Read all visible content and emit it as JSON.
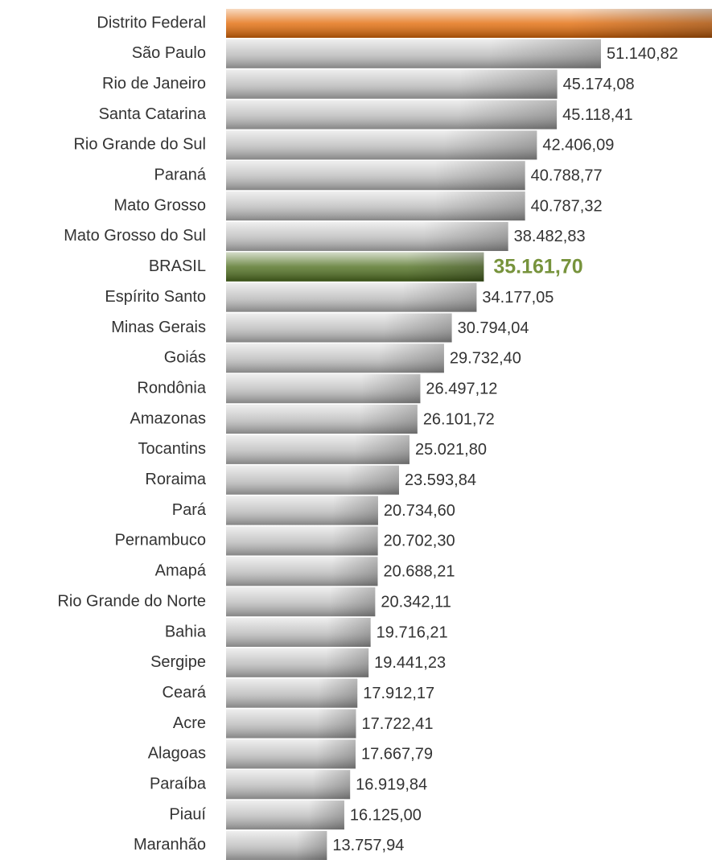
{
  "chart_data": {
    "type": "bar",
    "orientation": "horizontal",
    "categories": [
      "Distrito Federal",
      "São Paulo",
      "Rio de Janeiro",
      "Santa Catarina",
      "Rio Grande do Sul",
      "Paraná",
      "Mato Grosso",
      "Mato Grosso do Sul",
      "BRASIL",
      "Espírito Santo",
      "Minas Gerais",
      "Goiás",
      "Rondônia",
      "Amazonas",
      "Tocantins",
      "Roraima",
      "Pará",
      "Pernambuco",
      "Amapá",
      "Rio Grande do Norte",
      "Bahia",
      "Sergipe",
      "Ceará",
      "Acre",
      "Alagoas",
      "Paraíba",
      "Piauí",
      "Maranhão"
    ],
    "values": [
      67000,
      51140.82,
      45174.08,
      45118.41,
      42406.09,
      40788.77,
      40787.32,
      38482.83,
      35161.7,
      34177.05,
      30794.04,
      29732.4,
      26497.12,
      26101.72,
      25021.8,
      23593.84,
      20734.6,
      20702.3,
      20688.21,
      20342.11,
      19716.21,
      19441.23,
      17912.17,
      17722.41,
      17667.79,
      16919.84,
      16125.0,
      13757.94
    ],
    "value_labels": [
      null,
      "51.140,82",
      "45.174,08",
      "45.118,41",
      "42.406,09",
      "40.788,77",
      "40.787,32",
      "38.482,83",
      "35.161,70",
      "34.177,05",
      "30.794,04",
      "29.732,40",
      "26.497,12",
      "26.101,72",
      "25.021,80",
      "23.593,84",
      "20.734,60",
      "20.702,30",
      "20.688,21",
      "20.342,11",
      "19.716,21",
      "19.441,23",
      "17.912,17",
      "17.722,41",
      "17.667,79",
      "16.919,84",
      "16.125,00",
      "13.757,94"
    ],
    "colors": [
      "#e36c0a",
      "#bdbdbd",
      "#bdbdbd",
      "#bdbdbd",
      "#bdbdbd",
      "#bdbdbd",
      "#bdbdbd",
      "#bdbdbd",
      "#4f6f1f",
      "#bdbdbd",
      "#bdbdbd",
      "#bdbdbd",
      "#bdbdbd",
      "#bdbdbd",
      "#bdbdbd",
      "#bdbdbd",
      "#bdbdbd",
      "#bdbdbd",
      "#bdbdbd",
      "#bdbdbd",
      "#bdbdbd",
      "#bdbdbd",
      "#bdbdbd",
      "#bdbdbd",
      "#bdbdbd",
      "#bdbdbd",
      "#bdbdbd",
      "#bdbdbd"
    ],
    "xlim": [
      0,
      66290
    ]
  }
}
